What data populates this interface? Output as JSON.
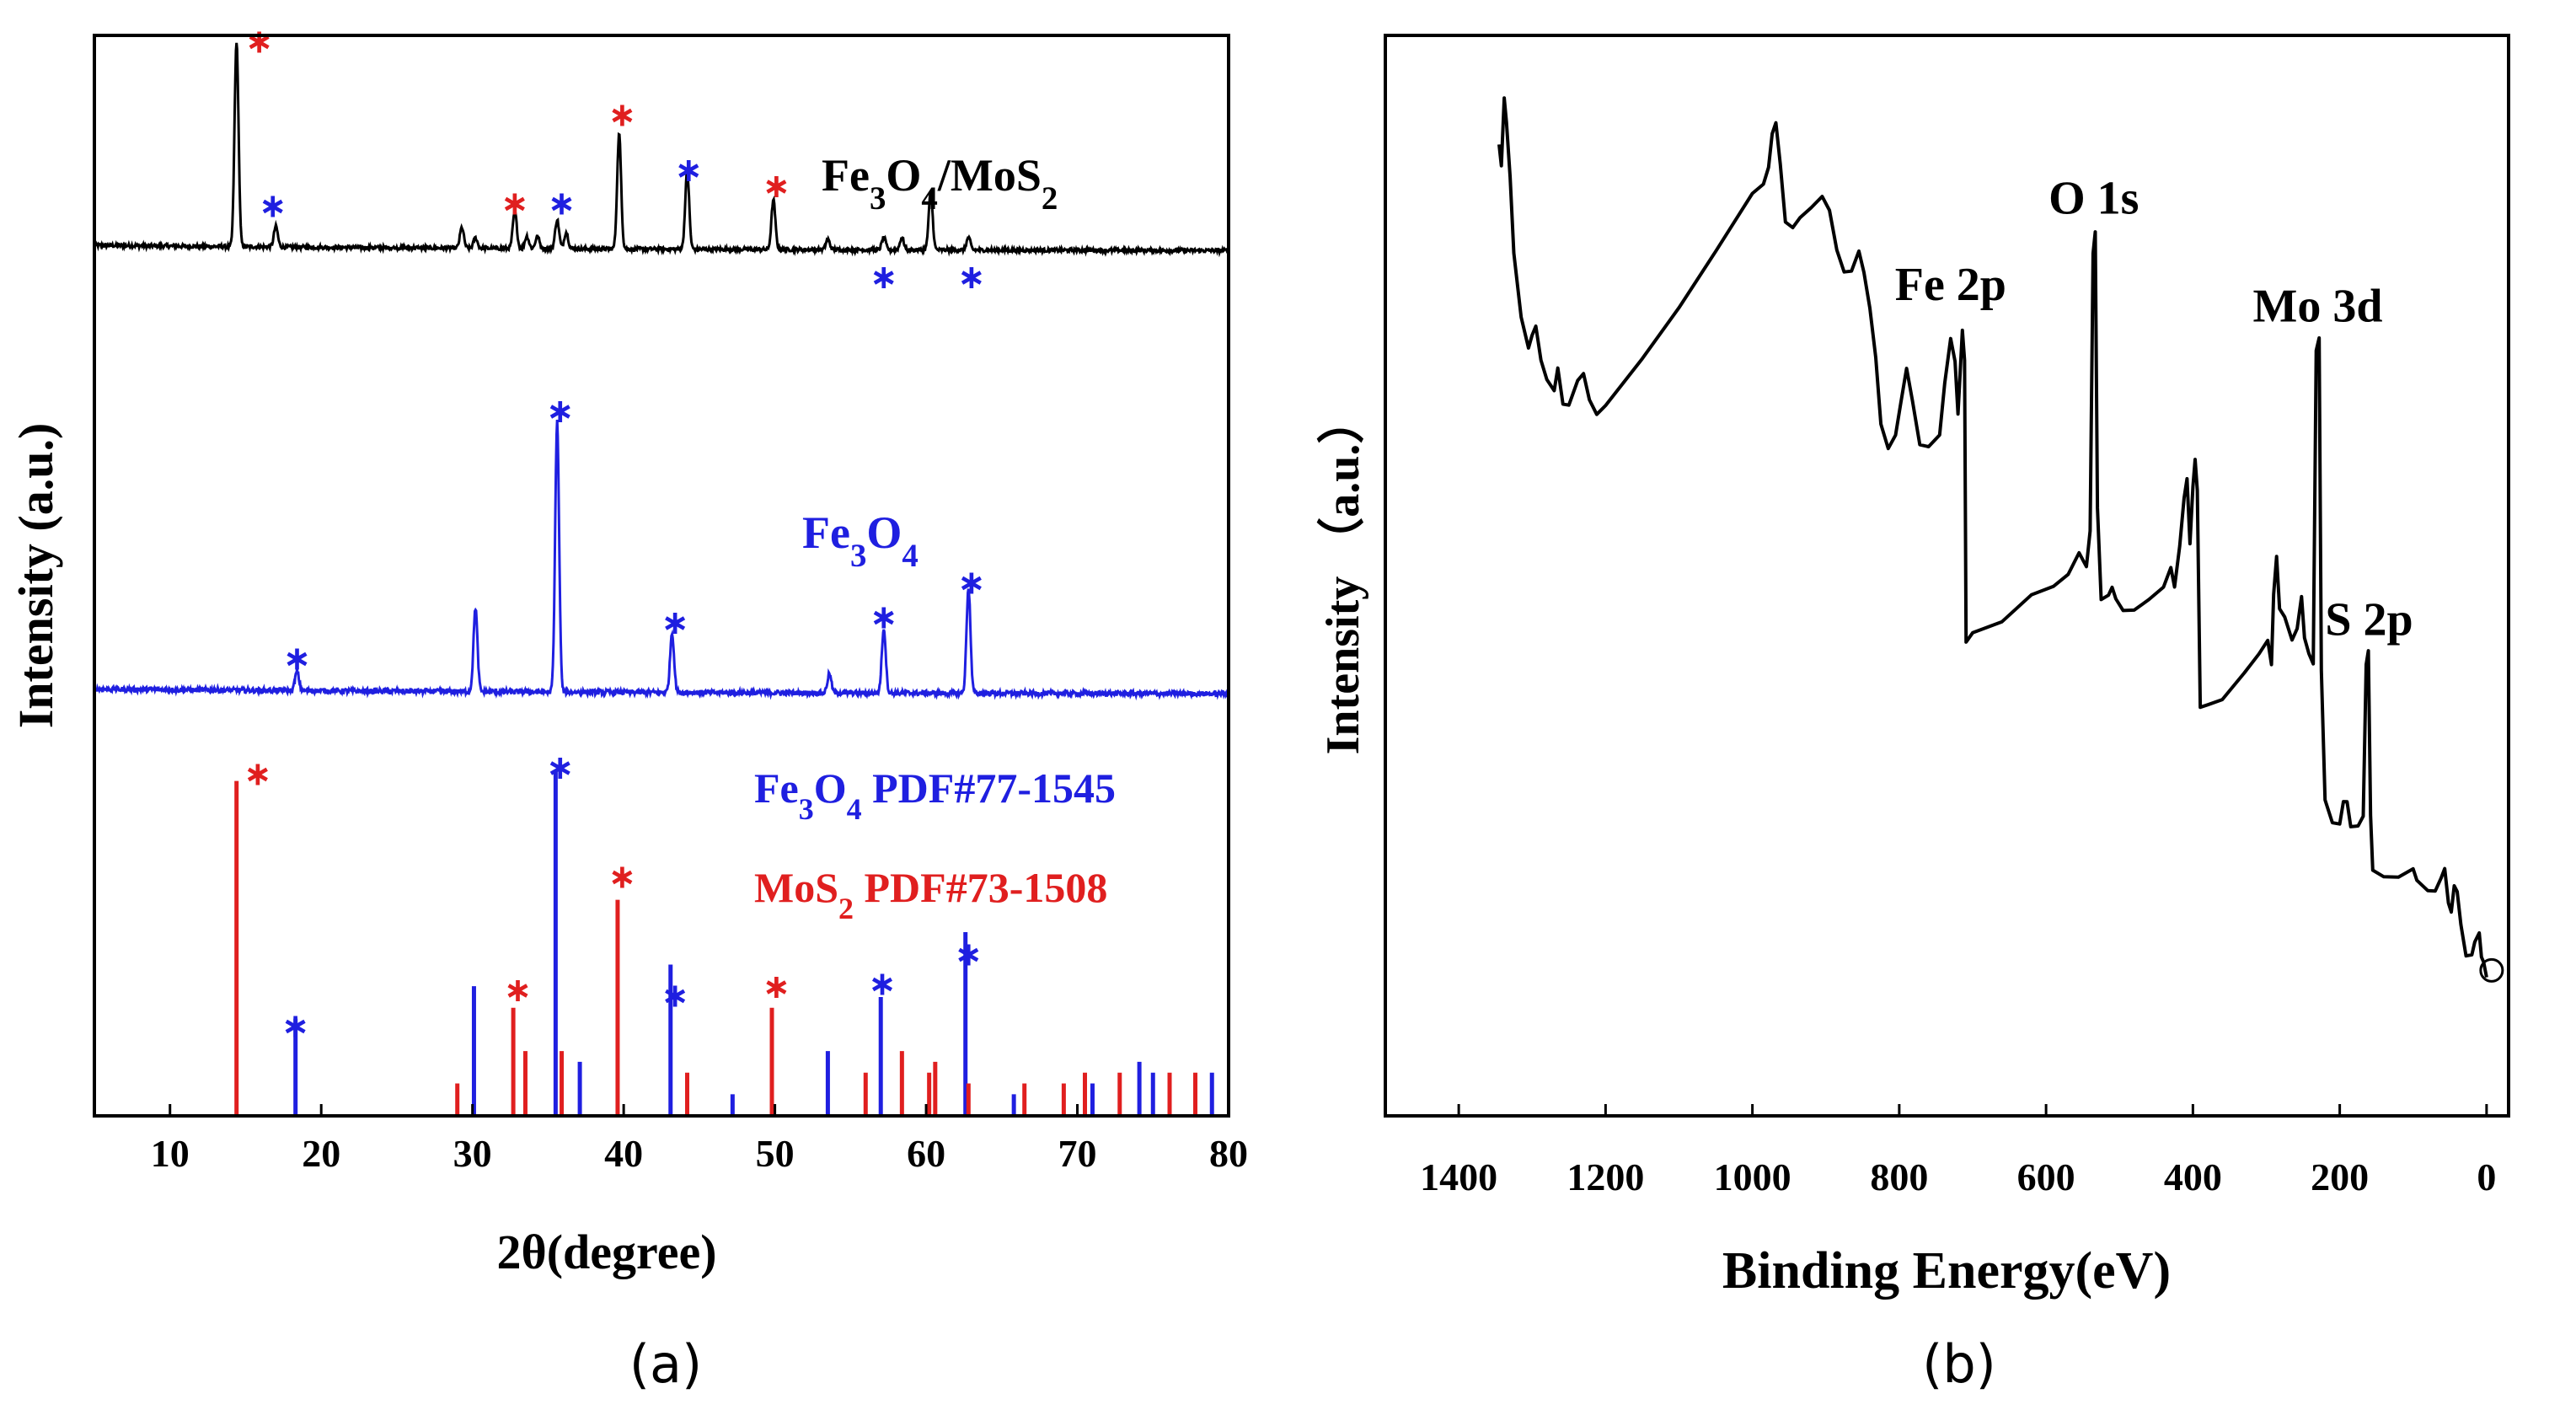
{
  "colors": {
    "black": "#000000",
    "blue": "#1f1fe0",
    "red": "#e01f1f",
    "axis": "#000000"
  },
  "chart_data": [
    {
      "panel": "(a)",
      "type": "line",
      "xlabel": "2θ(degree)",
      "ylabel": "Intensity (a.u.)",
      "xlim": [
        5,
        80
      ],
      "xticks": [
        10,
        20,
        30,
        40,
        50,
        60,
        70,
        80
      ],
      "series": [
        {
          "name": "Fe3O4/MoS2",
          "color": "#000000",
          "label_parts": [
            "Fe",
            "3",
            "O",
            "4",
            "/MoS",
            "2"
          ],
          "offset": 0.8,
          "scale": 0.19,
          "baseline": 0.03,
          "peaks": [
            [
              14.4,
              1.0
            ],
            [
              17.0,
              0.1
            ],
            [
              29.3,
              0.1
            ],
            [
              30.2,
              0.05
            ],
            [
              32.8,
              0.18
            ],
            [
              33.6,
              0.06
            ],
            [
              34.3,
              0.06
            ],
            [
              35.6,
              0.14
            ],
            [
              36.2,
              0.08
            ],
            [
              39.7,
              0.56
            ],
            [
              44.2,
              0.38
            ],
            [
              49.9,
              0.24
            ],
            [
              53.5,
              0.05
            ],
            [
              57.2,
              0.06
            ],
            [
              58.4,
              0.06
            ],
            [
              60.3,
              0.28
            ],
            [
              62.8,
              0.06
            ]
          ]
        },
        {
          "name": "Fe3O4",
          "color": "#1f1fe0",
          "label_parts": [
            "Fe",
            "3",
            "O",
            "4"
          ],
          "offset": 0.39,
          "scale": 0.25,
          "baseline": 0.02,
          "peaks": [
            [
              18.4,
              0.07
            ],
            [
              30.2,
              0.31
            ],
            [
              35.6,
              1.0
            ],
            [
              43.2,
              0.22
            ],
            [
              53.6,
              0.07
            ],
            [
              57.2,
              0.24
            ],
            [
              62.8,
              0.39
            ]
          ]
        }
      ],
      "reference_lines": [
        {
          "name": "Fe3O4 PDF#77-1545",
          "color": "#1f1fe0",
          "label_parts": [
            "Fe",
            "3",
            "O",
            "4",
            " PDF#77-1545"
          ],
          "lines": [
            [
              18.3,
              0.09
            ],
            [
              30.1,
              0.12
            ],
            [
              35.5,
              0.32
            ],
            [
              37.1,
              0.05
            ],
            [
              43.1,
              0.14
            ],
            [
              47.2,
              0.02
            ],
            [
              53.5,
              0.06
            ],
            [
              57.0,
              0.11
            ],
            [
              62.6,
              0.17
            ],
            [
              65.8,
              0.02
            ],
            [
              71.0,
              0.03
            ],
            [
              74.1,
              0.05
            ],
            [
              75.0,
              0.04
            ],
            [
              78.9,
              0.04
            ]
          ]
        },
        {
          "name": "MoS2 PDF#73-1508",
          "color": "#e01f1f",
          "label_parts": [
            "MoS",
            "2",
            " PDF#73-1508"
          ],
          "lines": [
            [
              14.4,
              0.31
            ],
            [
              29.0,
              0.03
            ],
            [
              32.7,
              0.1
            ],
            [
              33.5,
              0.06
            ],
            [
              35.9,
              0.06
            ],
            [
              39.6,
              0.2
            ],
            [
              44.2,
              0.04
            ],
            [
              49.8,
              0.1
            ],
            [
              56.0,
              0.04
            ],
            [
              58.4,
              0.06
            ],
            [
              60.2,
              0.04
            ],
            [
              60.6,
              0.05
            ],
            [
              62.8,
              0.03
            ],
            [
              66.5,
              0.03
            ],
            [
              69.1,
              0.03
            ],
            [
              70.5,
              0.04
            ],
            [
              72.8,
              0.04
            ],
            [
              76.1,
              0.04
            ],
            [
              77.8,
              0.04
            ]
          ]
        }
      ],
      "stars": [
        {
          "x": 15.9,
          "y": 0.995,
          "color": "#e01f1f"
        },
        {
          "x": 16.8,
          "y": 0.843,
          "color": "#1f1fe0"
        },
        {
          "x": 32.8,
          "y": 0.845,
          "color": "#e01f1f"
        },
        {
          "x": 35.9,
          "y": 0.845,
          "color": "#1f1fe0"
        },
        {
          "x": 39.9,
          "y": 0.927,
          "color": "#e01f1f"
        },
        {
          "x": 44.3,
          "y": 0.876,
          "color": "#1f1fe0"
        },
        {
          "x": 50.1,
          "y": 0.861,
          "color": "#e01f1f"
        },
        {
          "x": 57.2,
          "y": 0.777,
          "color": "#1f1fe0"
        },
        {
          "x": 63.0,
          "y": 0.777,
          "color": "#1f1fe0"
        },
        {
          "x": 35.8,
          "y": 0.653,
          "color": "#1f1fe0"
        },
        {
          "x": 18.4,
          "y": 0.424,
          "color": "#1f1fe0"
        },
        {
          "x": 43.4,
          "y": 0.457,
          "color": "#1f1fe0"
        },
        {
          "x": 57.2,
          "y": 0.462,
          "color": "#1f1fe0"
        },
        {
          "x": 63.0,
          "y": 0.494,
          "color": "#1f1fe0"
        },
        {
          "x": 15.8,
          "y": 0.317,
          "color": "#e01f1f"
        },
        {
          "x": 35.8,
          "y": 0.323,
          "color": "#1f1fe0"
        },
        {
          "x": 39.9,
          "y": 0.222,
          "color": "#e01f1f"
        },
        {
          "x": 18.3,
          "y": 0.084,
          "color": "#1f1fe0"
        },
        {
          "x": 33.0,
          "y": 0.117,
          "color": "#e01f1f"
        },
        {
          "x": 43.4,
          "y": 0.112,
          "color": "#1f1fe0"
        },
        {
          "x": 50.1,
          "y": 0.12,
          "color": "#e01f1f"
        },
        {
          "x": 57.1,
          "y": 0.123,
          "color": "#1f1fe0"
        },
        {
          "x": 62.8,
          "y": 0.15,
          "color": "#1f1fe0"
        }
      ]
    },
    {
      "panel": "(b)",
      "type": "line",
      "xlabel": "Binding Energy(eV)",
      "ylabel": "Intensity （a.u.）",
      "xlim": [
        1500,
        -30
      ],
      "xticks": [
        1400,
        1200,
        1000,
        800,
        600,
        400,
        200,
        0
      ],
      "ylim": [
        0,
        1
      ],
      "series": [
        {
          "name": "XPS survey",
          "color": "#000000",
          "points": [
            [
              1345,
              0.9
            ],
            [
              1342,
              0.88
            ],
            [
              1338,
              0.94
            ],
            [
              1335,
              0.92
            ],
            [
              1330,
              0.87
            ],
            [
              1325,
              0.8
            ],
            [
              1315,
              0.74
            ],
            [
              1305,
              0.71
            ],
            [
              1300,
              0.72
            ],
            [
              1295,
              0.73
            ],
            [
              1288,
              0.7
            ],
            [
              1280,
              0.68
            ],
            [
              1270,
              0.67
            ],
            [
              1265,
              0.69
            ],
            [
              1258,
              0.66
            ],
            [
              1250,
              0.66
            ],
            [
              1238,
              0.68
            ],
            [
              1230,
              0.69
            ],
            [
              1222,
              0.66
            ],
            [
              1212,
              0.65
            ],
            [
              1200,
              0.66
            ],
            [
              1150,
              0.7
            ],
            [
              1100,
              0.75
            ],
            [
              1050,
              0.8
            ],
            [
              1000,
              0.855
            ],
            [
              985,
              0.86
            ],
            [
              978,
              0.88
            ],
            [
              973,
              0.91
            ],
            [
              968,
              0.92
            ],
            [
              962,
              0.88
            ],
            [
              955,
              0.83
            ],
            [
              945,
              0.82
            ],
            [
              935,
              0.83
            ],
            [
              920,
              0.84
            ],
            [
              905,
              0.85
            ],
            [
              895,
              0.84
            ],
            [
              885,
              0.8
            ],
            [
              875,
              0.78
            ],
            [
              865,
              0.78
            ],
            [
              855,
              0.8
            ],
            [
              848,
              0.78
            ],
            [
              840,
              0.75
            ],
            [
              832,
              0.7
            ],
            [
              825,
              0.64
            ],
            [
              815,
              0.62
            ],
            [
              805,
              0.63
            ],
            [
              798,
              0.66
            ],
            [
              790,
              0.69
            ],
            [
              782,
              0.66
            ],
            [
              772,
              0.62
            ],
            [
              760,
              0.62
            ],
            [
              745,
              0.63
            ],
            [
              738,
              0.68
            ],
            [
              730,
              0.72
            ],
            [
              724,
              0.7
            ],
            [
              720,
              0.65
            ],
            [
              714,
              0.73
            ],
            [
              711,
              0.7
            ],
            [
              709,
              0.44
            ],
            [
              700,
              0.445
            ],
            [
              660,
              0.46
            ],
            [
              620,
              0.48
            ],
            [
              590,
              0.49
            ],
            [
              570,
              0.5
            ],
            [
              555,
              0.52
            ],
            [
              545,
              0.51
            ],
            [
              540,
              0.54
            ],
            [
              536,
              0.8
            ],
            [
              533,
              0.82
            ],
            [
              530,
              0.56
            ],
            [
              525,
              0.48
            ],
            [
              515,
              0.48
            ],
            [
              510,
              0.49
            ],
            [
              505,
              0.48
            ],
            [
              495,
              0.47
            ],
            [
              480,
              0.47
            ],
            [
              460,
              0.48
            ],
            [
              440,
              0.49
            ],
            [
              430,
              0.51
            ],
            [
              425,
              0.49
            ],
            [
              418,
              0.53
            ],
            [
              412,
              0.57
            ],
            [
              408,
              0.59
            ],
            [
              404,
              0.53
            ],
            [
              400,
              0.58
            ],
            [
              397,
              0.61
            ],
            [
              394,
              0.58
            ],
            [
              390,
              0.38
            ],
            [
              380,
              0.38
            ],
            [
              360,
              0.385
            ],
            [
              330,
              0.41
            ],
            [
              310,
              0.43
            ],
            [
              298,
              0.44
            ],
            [
              293,
              0.42
            ],
            [
              290,
              0.48
            ],
            [
              286,
              0.52
            ],
            [
              282,
              0.47
            ],
            [
              275,
              0.46
            ],
            [
              265,
              0.44
            ],
            [
              258,
              0.45
            ],
            [
              252,
              0.48
            ],
            [
              248,
              0.44
            ],
            [
              242,
              0.43
            ],
            [
              236,
              0.42
            ],
            [
              232,
              0.71
            ],
            [
              228,
              0.72
            ],
            [
              225,
              0.41
            ],
            [
              220,
              0.29
            ],
            [
              210,
              0.27
            ],
            [
              200,
              0.27
            ],
            [
              195,
              0.29
            ],
            [
              190,
              0.29
            ],
            [
              185,
              0.27
            ],
            [
              175,
              0.27
            ],
            [
              168,
              0.28
            ],
            [
              164,
              0.42
            ],
            [
              161,
              0.43
            ],
            [
              158,
              0.28
            ],
            [
              155,
              0.23
            ],
            [
              140,
              0.22
            ],
            [
              120,
              0.22
            ],
            [
              100,
              0.23
            ],
            [
              95,
              0.22
            ],
            [
              80,
              0.21
            ],
            [
              70,
              0.21
            ],
            [
              62,
              0.22
            ],
            [
              57,
              0.23
            ],
            [
              52,
              0.2
            ],
            [
              48,
              0.19
            ],
            [
              44,
              0.21
            ],
            [
              40,
              0.21
            ],
            [
              35,
              0.18
            ],
            [
              28,
              0.15
            ],
            [
              20,
              0.15
            ],
            [
              16,
              0.16
            ],
            [
              10,
              0.17
            ],
            [
              7,
              0.15
            ],
            [
              4,
              0.14
            ],
            [
              0,
              0.13
            ]
          ]
        }
      ],
      "annotations": [
        {
          "text": "Fe 2p",
          "x": 730,
          "y": 0.755
        },
        {
          "text": "O 1s",
          "x": 535,
          "y": 0.835
        },
        {
          "text": "Mo 3d",
          "x": 230,
          "y": 0.735
        },
        {
          "text": "S 2p",
          "x": 160,
          "y": 0.445
        }
      ]
    }
  ],
  "panel_labels": [
    "(a)",
    "(b)"
  ]
}
